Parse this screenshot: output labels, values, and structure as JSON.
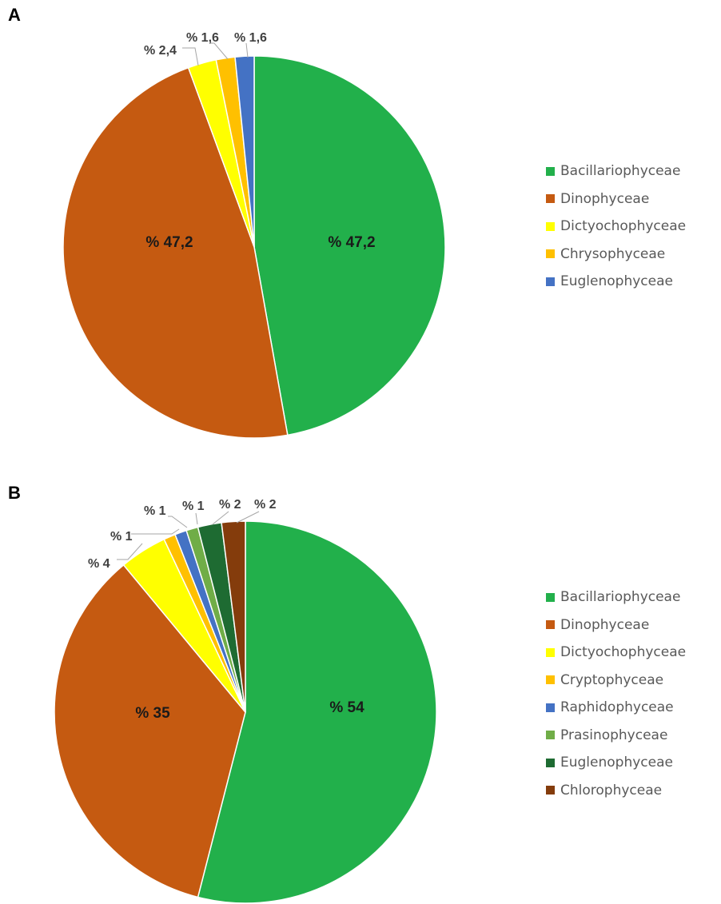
{
  "chart_data": [
    {
      "type": "pie",
      "panel": "A",
      "categories": [
        "Bacillariophyceae",
        "Dinophyceae",
        "Dictyochophyceae",
        "Chrysophyceae",
        "Euglenophyceae"
      ],
      "values": [
        47.2,
        47.2,
        2.4,
        1.6,
        1.6
      ],
      "labels": [
        "% 47,2",
        "% 47,2",
        "% 2,4",
        "% 1,6",
        "% 1,6"
      ],
      "colors": [
        "#22b04b",
        "#c55a11",
        "#ffff00",
        "#ffc000",
        "#4472c4"
      ],
      "legend_position": "right"
    },
    {
      "type": "pie",
      "panel": "B",
      "categories": [
        "Bacillariophyceae",
        "Dinophyceae",
        "Dictyochophyceae",
        "Cryptophyceae",
        "Raphidophyceae",
        "Prasinophyceae",
        "Euglenophyceae",
        "Chlorophyceae"
      ],
      "values": [
        54,
        35,
        4,
        1,
        1,
        1,
        2,
        2
      ],
      "labels": [
        "% 54",
        "% 35",
        "% 4",
        "% 1",
        "% 1",
        "% 1",
        "% 2",
        "% 2"
      ],
      "colors": [
        "#22b04b",
        "#c55a11",
        "#ffff00",
        "#ffc000",
        "#4472c4",
        "#70ad47",
        "#1e6b32",
        "#843c0c"
      ],
      "legend_position": "right"
    }
  ]
}
